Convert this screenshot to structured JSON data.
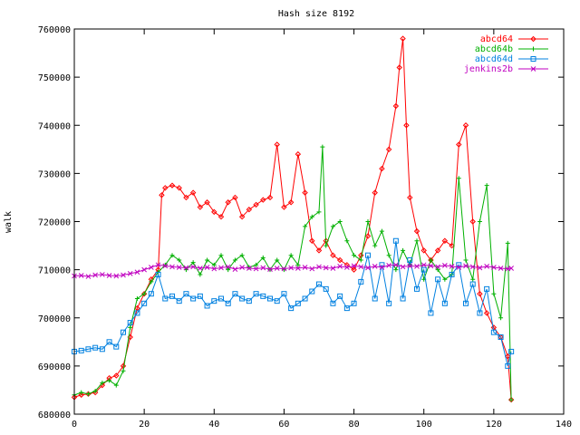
{
  "chart_data": {
    "type": "line",
    "title": "Hash size 8192",
    "xlabel": "",
    "ylabel": "walk",
    "xlim": [
      0,
      140
    ],
    "ylim": [
      680000,
      760000
    ],
    "xticks": [
      0,
      20,
      40,
      60,
      80,
      100,
      120,
      140
    ],
    "yticks": [
      680000,
      690000,
      700000,
      710000,
      720000,
      730000,
      740000,
      750000,
      760000
    ],
    "grid": false,
    "legend_position": "top-right",
    "series": [
      {
        "name": "abcd64",
        "color": "#ff0000",
        "marker": "diamond",
        "x": [
          0,
          2,
          4,
          6,
          8,
          10,
          12,
          14,
          16,
          18,
          20,
          22,
          24,
          25,
          26,
          28,
          30,
          32,
          34,
          36,
          38,
          40,
          42,
          44,
          46,
          48,
          50,
          52,
          54,
          56,
          58,
          60,
          62,
          64,
          66,
          68,
          70,
          72,
          74,
          76,
          78,
          80,
          82,
          84,
          86,
          88,
          90,
          92,
          93,
          94,
          95,
          96,
          98,
          100,
          102,
          104,
          106,
          108,
          110,
          112,
          114,
          116,
          118,
          120,
          122,
          124,
          125
        ],
        "y": [
          683500,
          684000,
          684200,
          684500,
          686000,
          687500,
          688000,
          690000,
          696000,
          702000,
          705000,
          708000,
          710000,
          725500,
          727000,
          727500,
          727000,
          725000,
          726000,
          723000,
          724000,
          722000,
          721000,
          724000,
          725000,
          721000,
          722500,
          723500,
          724500,
          725000,
          736000,
          723000,
          724000,
          734000,
          726000,
          716000,
          714000,
          716000,
          713000,
          712000,
          711000,
          710000,
          713000,
          717000,
          726000,
          731000,
          735000,
          744000,
          752000,
          758000,
          740000,
          725000,
          718000,
          714000,
          712000,
          714000,
          716000,
          715000,
          736000,
          740000,
          720000,
          705000,
          701000,
          698000,
          696000,
          692000,
          683000
        ]
      },
      {
        "name": "abcd64b",
        "color": "#00b000",
        "marker": "plus",
        "x": [
          0,
          2,
          4,
          6,
          8,
          10,
          12,
          14,
          16,
          18,
          20,
          22,
          24,
          26,
          28,
          30,
          32,
          34,
          36,
          38,
          40,
          42,
          44,
          46,
          48,
          50,
          52,
          54,
          56,
          58,
          60,
          62,
          64,
          66,
          68,
          70,
          71,
          72,
          74,
          76,
          78,
          80,
          82,
          84,
          86,
          88,
          90,
          92,
          94,
          96,
          98,
          100,
          102,
          104,
          106,
          108,
          110,
          112,
          114,
          116,
          118,
          120,
          122,
          124,
          125
        ],
        "y": [
          684000,
          684500,
          684200,
          684800,
          686500,
          687000,
          686000,
          689000,
          698000,
          704000,
          705000,
          707500,
          709500,
          711000,
          713000,
          712000,
          710000,
          711500,
          709000,
          712000,
          711000,
          713000,
          710000,
          712000,
          713000,
          710500,
          711000,
          712500,
          710000,
          712000,
          710000,
          713000,
          711000,
          719000,
          721000,
          722000,
          735500,
          715000,
          719000,
          720000,
          716000,
          713000,
          712000,
          720000,
          715000,
          718000,
          713000,
          710000,
          714000,
          711000,
          716000,
          708000,
          712000,
          710000,
          708000,
          709000,
          729000,
          712000,
          708000,
          720000,
          727500,
          705000,
          700000,
          715500,
          683000
        ]
      },
      {
        "name": "abcd64d",
        "color": "#0080e0",
        "marker": "square",
        "x": [
          0,
          2,
          4,
          6,
          8,
          10,
          12,
          14,
          16,
          18,
          20,
          22,
          24,
          26,
          28,
          30,
          32,
          34,
          36,
          38,
          40,
          42,
          44,
          46,
          48,
          50,
          52,
          54,
          56,
          58,
          60,
          62,
          64,
          66,
          68,
          70,
          72,
          74,
          76,
          78,
          80,
          82,
          84,
          86,
          88,
          90,
          92,
          94,
          96,
          98,
          100,
          102,
          104,
          106,
          108,
          110,
          112,
          114,
          116,
          118,
          120,
          122,
          124,
          125
        ],
        "y": [
          693000,
          693200,
          693500,
          693800,
          693500,
          695000,
          694000,
          697000,
          699000,
          701000,
          703000,
          705000,
          709000,
          704000,
          704500,
          703500,
          705000,
          704000,
          704500,
          702500,
          703500,
          704000,
          703000,
          705000,
          704000,
          703500,
          705000,
          704500,
          704000,
          703500,
          705000,
          702000,
          703000,
          704000,
          705500,
          707000,
          706000,
          703000,
          704500,
          702000,
          703000,
          707500,
          713000,
          704000,
          711000,
          703000,
          716000,
          704000,
          712000,
          706000,
          710000,
          701000,
          708000,
          703000,
          709000,
          711000,
          703000,
          707000,
          701000,
          706000,
          697000,
          696000,
          690000,
          693000
        ]
      },
      {
        "name": "jenkins2b",
        "color": "#c000c0",
        "marker": "x",
        "x": [
          0,
          2,
          4,
          6,
          8,
          10,
          12,
          14,
          16,
          18,
          20,
          22,
          24,
          26,
          28,
          30,
          32,
          34,
          36,
          38,
          40,
          42,
          44,
          46,
          48,
          50,
          52,
          54,
          56,
          58,
          60,
          62,
          64,
          66,
          68,
          70,
          72,
          74,
          76,
          78,
          80,
          82,
          84,
          86,
          88,
          90,
          92,
          94,
          96,
          98,
          100,
          102,
          104,
          106,
          108,
          110,
          112,
          114,
          116,
          118,
          120,
          122,
          124,
          125
        ],
        "y": [
          708700,
          708800,
          708600,
          708900,
          709000,
          708800,
          708700,
          708900,
          709200,
          709500,
          710000,
          710500,
          711000,
          710800,
          710600,
          710500,
          710400,
          710600,
          710300,
          710500,
          710200,
          710400,
          710600,
          710100,
          710500,
          710300,
          710200,
          710400,
          710100,
          710300,
          710200,
          710400,
          710300,
          710500,
          710200,
          710600,
          710400,
          710300,
          710700,
          710500,
          710800,
          710600,
          710400,
          710700,
          710500,
          710900,
          711000,
          710600,
          710800,
          710700,
          711000,
          710800,
          710600,
          710900,
          710700,
          710500,
          710800,
          710600,
          710400,
          710700,
          710500,
          710300,
          710200,
          710300
        ]
      }
    ]
  }
}
